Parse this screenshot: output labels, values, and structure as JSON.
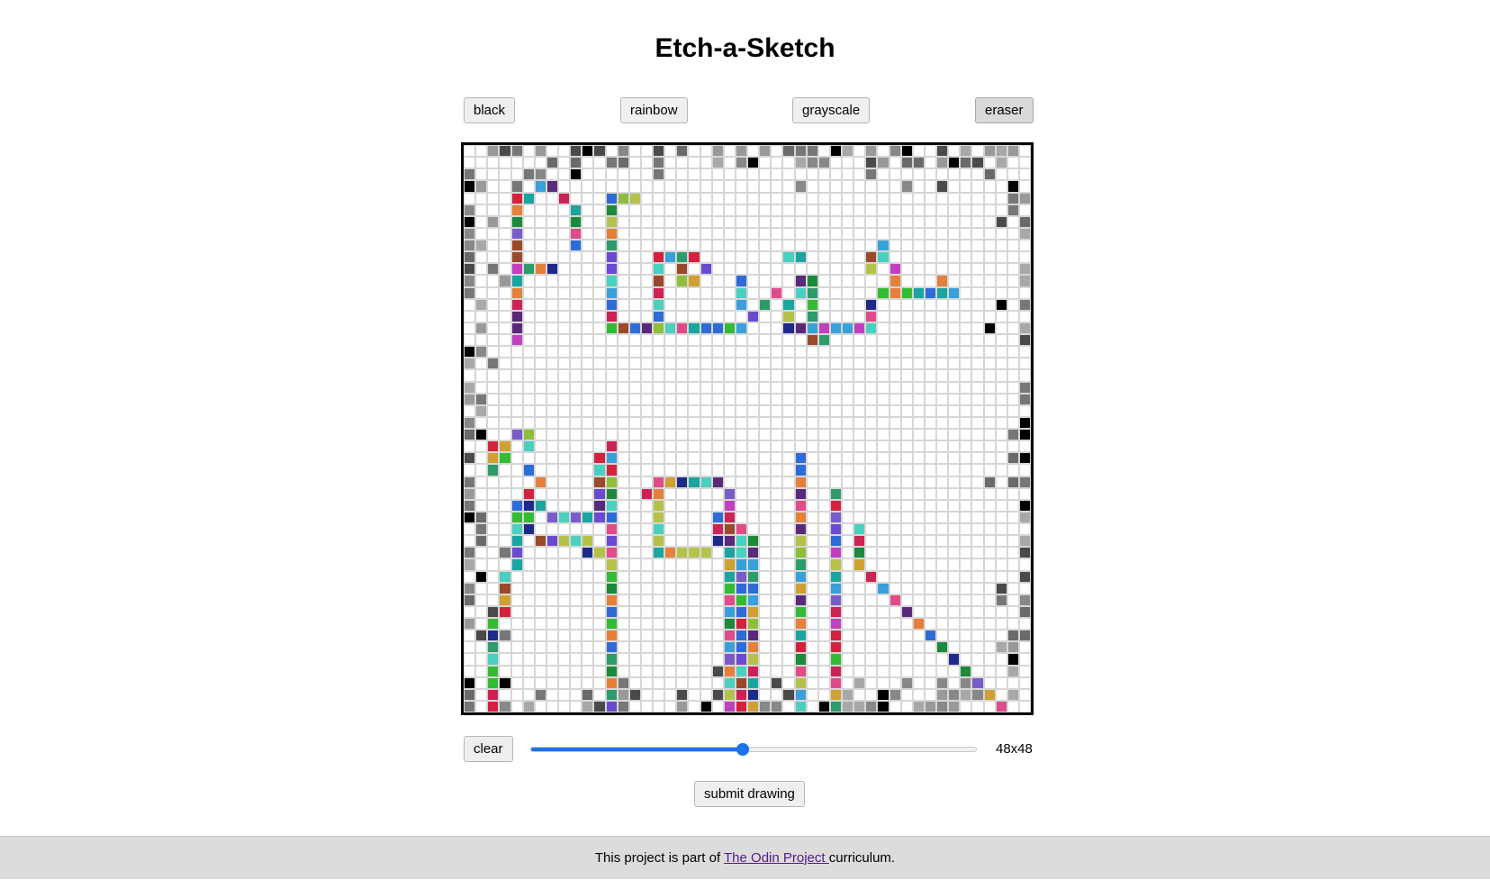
{
  "title": "Etch-a-Sketch",
  "modes": {
    "black": "black",
    "rainbow": "rainbow",
    "grayscale": "grayscale",
    "eraser": "eraser",
    "active": "eraser"
  },
  "controls": {
    "clear_label": "clear",
    "size_label": "48x48",
    "slider_value": 48,
    "slider_min": 1,
    "slider_max": 100,
    "submit_label": "submit drawing"
  },
  "grid": {
    "size": 48,
    "colors": {
      "grid_line": "#d6d6d6",
      "frame": "#000000",
      "background": "#ffffff",
      "accent": "#1a73e8"
    },
    "palette": [
      "#1b8a3a",
      "#d4213d",
      "#7a5cc9",
      "#2f6bd6",
      "#c23fbf",
      "#1aa5a0",
      "#e5803a",
      "#8fbf3a",
      "#5a2a7a",
      "#3aa0d9",
      "#b5c24a",
      "#e04c8a",
      "#2c9c6a",
      "#9a4a2a",
      "#4ad0c0",
      "#cc2255",
      "#6a4ad0",
      "#33bb33",
      "#d0a030",
      "#1e2a8a"
    ]
  },
  "footer": {
    "prefix": "This project is part of ",
    "link_text": "The Odin Project ",
    "suffix": "curriculum."
  }
}
